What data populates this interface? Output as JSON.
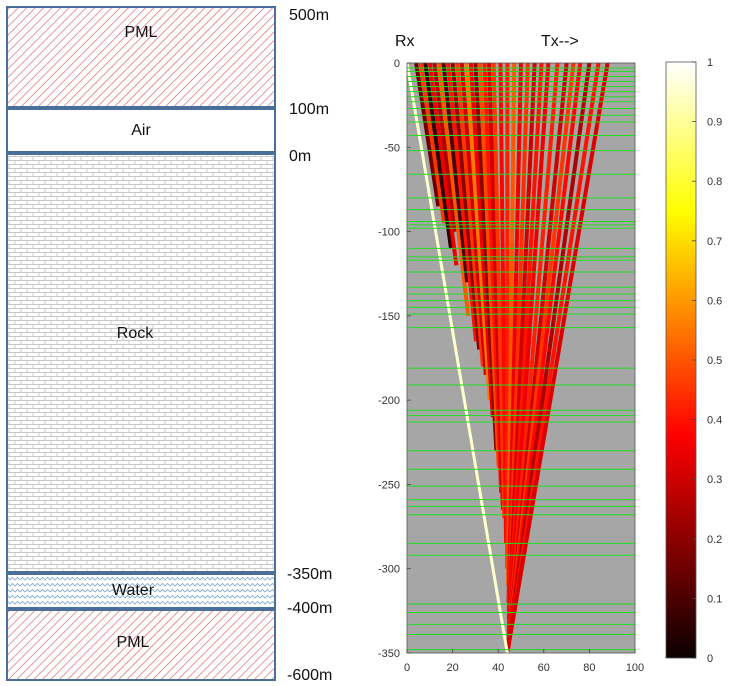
{
  "model": {
    "layers": [
      {
        "id": "pml-top",
        "label": "PML",
        "pattern": "pml"
      },
      {
        "id": "air",
        "label": "Air",
        "pattern": "air"
      },
      {
        "id": "rock",
        "label": "Rock",
        "pattern": "rock"
      },
      {
        "id": "water",
        "label": "Water",
        "pattern": "water"
      },
      {
        "id": "pml-bottom",
        "label": "PML",
        "pattern": "pml"
      }
    ],
    "depth_labels": [
      "500m",
      "100m",
      "0m",
      "-350m",
      "-400m",
      "-600m"
    ]
  },
  "plot": {
    "rx_label": "Rx",
    "tx_label": "Tx-->",
    "x_ticks": [
      "0",
      "20",
      "40",
      "60",
      "80",
      "100"
    ],
    "y_ticks": [
      "0",
      "-50",
      "-100",
      "-150",
      "-200",
      "-250",
      "-300",
      "-350"
    ],
    "colorbar_ticks": [
      "1",
      "0.9",
      "0.8",
      "0.7",
      "0.6",
      "0.5",
      "0.4",
      "0.3",
      "0.2",
      "0.1",
      "0"
    ],
    "colors": {
      "background": "#a6a6a6",
      "horizontal_lines": "#22dd22",
      "frame": "#4a6f9b"
    }
  },
  "chart_data": {
    "type": "heatmap",
    "xlim": [
      0,
      100
    ],
    "ylim": [
      -350,
      0
    ],
    "clim": [
      0,
      1
    ],
    "colormap": "hot",
    "apex": {
      "x": 44,
      "y": -350
    },
    "top_x": [
      0,
      90
    ],
    "horizontal_line_depths": [
      -3,
      -5,
      -8,
      -11,
      -14,
      -17,
      -20,
      -23,
      -27,
      -31,
      -35,
      -43,
      -52,
      -66,
      -80,
      -87,
      -94,
      -96,
      -98,
      -110,
      -115,
      -117,
      -124,
      -133,
      -137,
      -141,
      -145,
      -149,
      -157,
      -181,
      -191,
      -206,
      -209,
      -213,
      -230,
      -241,
      -251,
      -259,
      -263,
      -268,
      -285,
      -292,
      -321,
      -326,
      -333,
      -339,
      -348
    ],
    "rays": [
      {
        "x_top": 4,
        "y_end": -85,
        "value": 0.15
      },
      {
        "x_top": 6,
        "y_end": -95,
        "value": 0.45
      },
      {
        "x_top": 8,
        "y_end": -110,
        "value": 0.05
      },
      {
        "x_top": 10,
        "y_end": -120,
        "value": 0.35
      },
      {
        "x_top": 12,
        "y_end": -100,
        "value": 0.25
      },
      {
        "x_top": 14,
        "y_end": -150,
        "value": 0.5
      },
      {
        "x_top": 16,
        "y_end": -130,
        "value": 0.1
      },
      {
        "x_top": 18,
        "y_end": -165,
        "value": 0.4
      },
      {
        "x_top": 20,
        "y_end": -170,
        "value": 0.2
      },
      {
        "x_top": 22,
        "y_end": -180,
        "value": 0.45
      },
      {
        "x_top": 24,
        "y_end": -185,
        "value": 0.3
      },
      {
        "x_top": 26,
        "y_end": -200,
        "value": 0.55
      },
      {
        "x_top": 28,
        "y_end": -210,
        "value": 0.35
      },
      {
        "x_top": 30,
        "y_end": -230,
        "value": 0.2
      },
      {
        "x_top": 32,
        "y_end": -240,
        "value": 0.48
      },
      {
        "x_top": 34,
        "y_end": -255,
        "value": 0.4
      },
      {
        "x_top": 36,
        "y_end": -265,
        "value": 0.3
      },
      {
        "x_top": 38,
        "y_end": -270,
        "value": 0.45
      },
      {
        "x_top": 41,
        "y_end": -285,
        "value": 0.38
      },
      {
        "x_top": 44,
        "y_end": -300,
        "value": 0.42
      },
      {
        "x_top": 47,
        "y_end": -310,
        "value": 0.5
      },
      {
        "x_top": 50,
        "y_end": -320,
        "value": 0.35
      },
      {
        "x_top": 53,
        "y_end": -325,
        "value": 0.44
      },
      {
        "x_top": 56,
        "y_end": -330,
        "value": 0.3
      },
      {
        "x_top": 59,
        "y_end": -335,
        "value": 0.4
      },
      {
        "x_top": 62,
        "y_end": -338,
        "value": 0.35
      },
      {
        "x_top": 66,
        "y_end": -340,
        "value": 0.42
      },
      {
        "x_top": 70,
        "y_end": -343,
        "value": 0.3
      },
      {
        "x_top": 73,
        "y_end": -345,
        "value": 0.45
      },
      {
        "x_top": 76,
        "y_end": -346,
        "value": 0.38
      },
      {
        "x_top": 80,
        "y_end": -347,
        "value": 0.25
      },
      {
        "x_top": 84,
        "y_end": -348,
        "value": 0.4
      },
      {
        "x_top": 88,
        "y_end": -349,
        "value": 0.32
      }
    ],
    "direct_ray_value": 0.95
  }
}
